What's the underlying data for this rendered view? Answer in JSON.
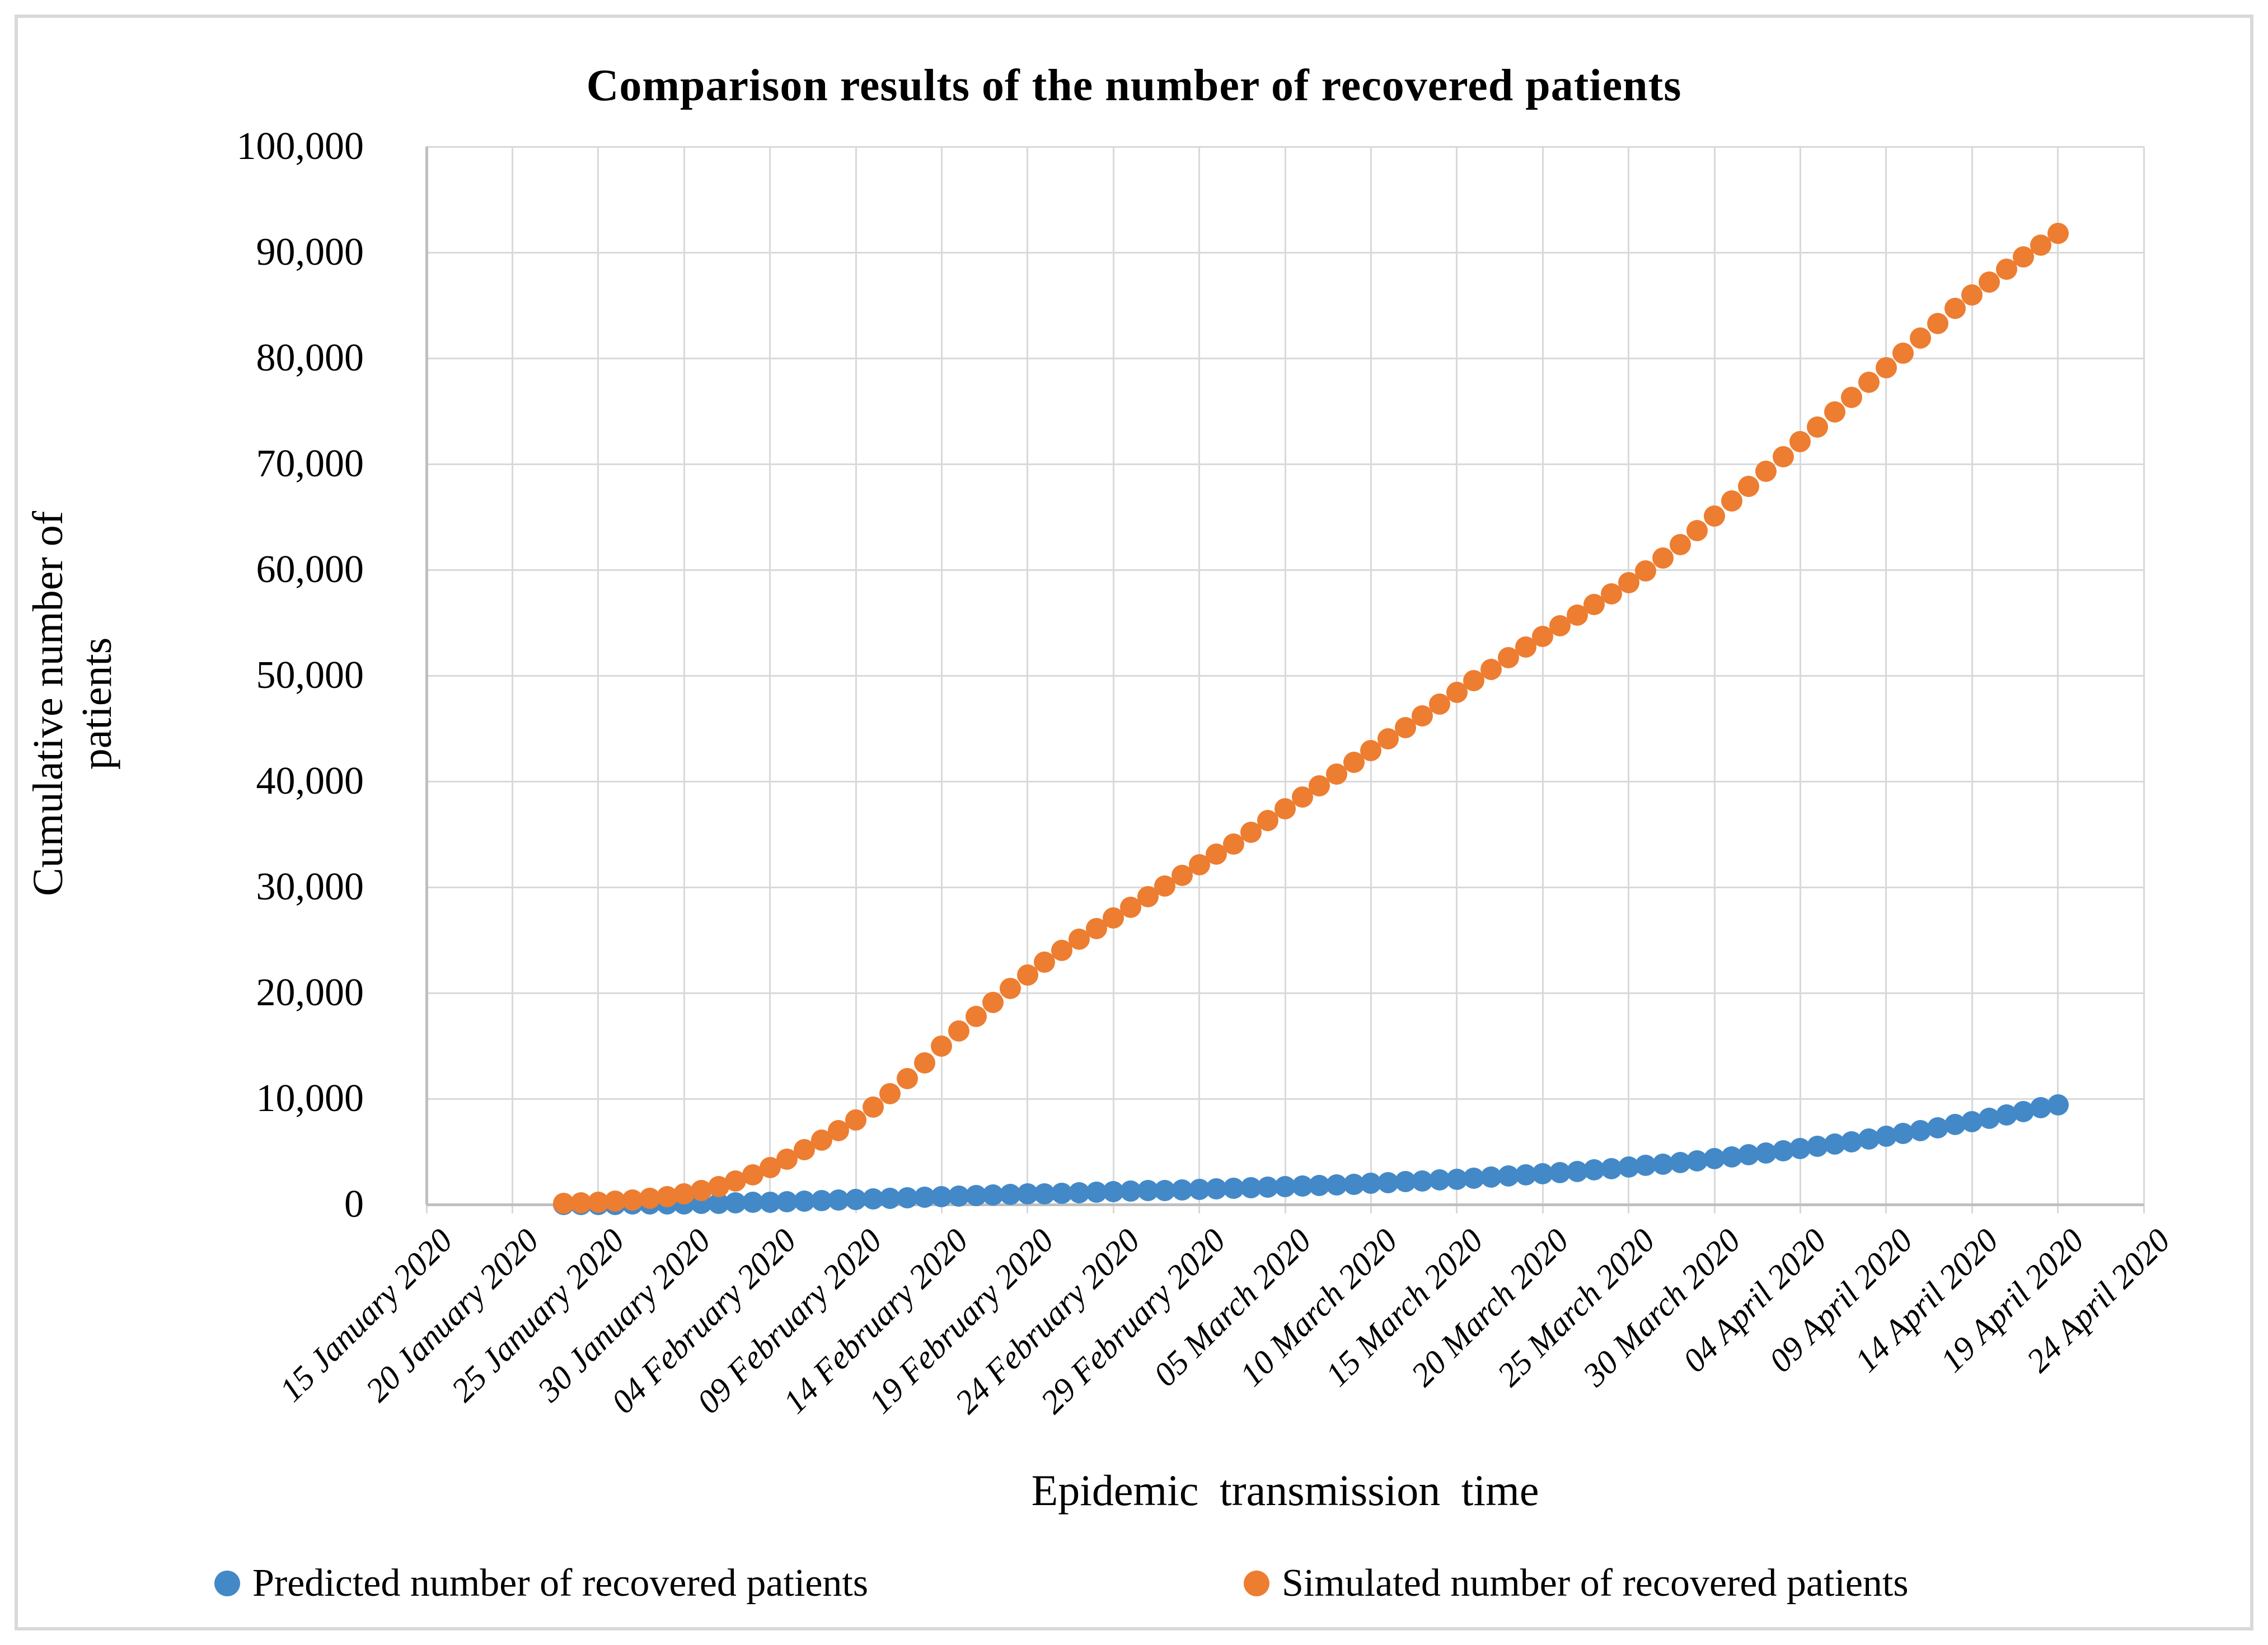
{
  "figure": {
    "title": "Comparison results of the number of recovered patients"
  },
  "y_axis": {
    "title": "Cumulative number of patients",
    "tick_labels": [
      "0",
      "10,000",
      "20,000",
      "30,000",
      "40,000",
      "50,000",
      "60,000",
      "70,000",
      "80,000",
      "90,000",
      "100,000"
    ]
  },
  "x_axis": {
    "title": "Epidemic transmission time",
    "tick_labels": [
      "15 January 2020",
      "20 January 2020",
      "25 January 2020",
      "30 January 2020",
      "04 February 2020",
      "09 February 2020",
      "14 February 2020",
      "19 February 2020",
      "24 February 2020",
      "29 February 2020",
      "05 March 2020",
      "10 March 2020",
      "15 March 2020",
      "20 March 2020",
      "25 March 2020",
      "30 March 2020",
      "04 April 2020",
      "09 April 2020",
      "14 April 2020",
      "19 April 2020",
      "24 April 2020"
    ]
  },
  "legend": {
    "items": [
      {
        "label": "Predicted number of recovered patients",
        "color": "#4389c8"
      },
      {
        "label": "Simulated number of recovered patients",
        "color": "#ed7d31"
      }
    ]
  },
  "chart_data": {
    "type": "scatter",
    "title": "Comparison results of the number of recovered patients",
    "xlabel": "Epidemic transmission time",
    "ylabel": "Cumulative number of patients",
    "ylim": [
      0,
      100000
    ],
    "grid": "both",
    "legend_position": "bottom",
    "x_axis_day0": "15 January 2020",
    "x_tick_step_days": 5,
    "x_tick_labels": [
      "15 January 2020",
      "20 January 2020",
      "25 January 2020",
      "30 January 2020",
      "04 February 2020",
      "09 February 2020",
      "14 February 2020",
      "19 February 2020",
      "24 February 2020",
      "29 February 2020",
      "05 March 2020",
      "10 March 2020",
      "15 March 2020",
      "20 March 2020",
      "25 March 2020",
      "30 March 2020",
      "04 April 2020",
      "09 April 2020",
      "14 April 2020",
      "19 April 2020",
      "24 April 2020"
    ],
    "series": [
      {
        "name": "Predicted number of recovered patients",
        "color": "#4389c8",
        "start_day_offset": 8,
        "start_date": "23 January 2020",
        "end_date": "19 April 2020",
        "daily_values": [
          8,
          12,
          18,
          25,
          34,
          45,
          60,
          78,
          100,
          125,
          155,
          190,
          230,
          270,
          315,
          360,
          410,
          460,
          515,
          570,
          630,
          695,
          760,
          805,
          850,
          895,
          940,
          985,
          1030,
          1075,
          1120,
          1165,
          1210,
          1255,
          1300,
          1340,
          1380,
          1420,
          1470,
          1520,
          1570,
          1620,
          1680,
          1740,
          1800,
          1865,
          1930,
          2000,
          2075,
          2150,
          2230,
          2310,
          2400,
          2490,
          2590,
          2690,
          2790,
          2900,
          3020,
          3140,
          3270,
          3400,
          3540,
          3680,
          3830,
          3990,
          4150,
          4320,
          4500,
          4690,
          4880,
          5080,
          5290,
          5500,
          5720,
          5950,
          6190,
          6440,
          6700,
          6970,
          7250,
          7540,
          7840,
          8150,
          8470,
          8800,
          9140,
          9400
        ]
      },
      {
        "name": "Simulated number of recovered patients",
        "color": "#ed7d31",
        "start_day_offset": 8,
        "start_date": "23 January 2020",
        "end_date": "19 April 2020",
        "daily_values": [
          100,
          150,
          220,
          300,
          420,
          570,
          760,
          1000,
          1300,
          1700,
          2200,
          2800,
          3500,
          4300,
          5200,
          6100,
          7000,
          8000,
          9200,
          10500,
          11900,
          13400,
          15000,
          16400,
          17800,
          19100,
          20400,
          21700,
          22900,
          24000,
          25100,
          26100,
          27100,
          28100,
          29100,
          30100,
          31100,
          32100,
          33100,
          34100,
          35200,
          36300,
          37400,
          38500,
          39600,
          40700,
          41800,
          42900,
          44000,
          45100,
          46200,
          47300,
          48400,
          49500,
          50600,
          51700,
          52700,
          53700,
          54700,
          55700,
          56700,
          57700,
          58800,
          59900,
          61100,
          62400,
          63700,
          65100,
          66500,
          67900,
          69300,
          70700,
          72100,
          73500,
          74900,
          76300,
          77700,
          79100,
          80500,
          81900,
          83300,
          84700,
          86000,
          87200,
          88400,
          89600,
          90700,
          91800
        ]
      }
    ]
  }
}
